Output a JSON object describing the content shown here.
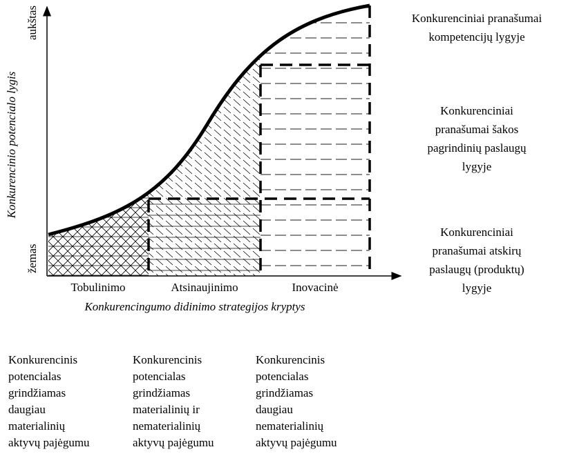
{
  "y_axis": {
    "label": "Konkurencinio potencialo lygis",
    "high": "aukštas",
    "low": "žemas"
  },
  "x_axis": {
    "label": "Konkurencingumo didinimo strategijos kryptys",
    "categories": [
      "Tobulinimo",
      "Atsinaujinimo",
      "Inovacinė"
    ]
  },
  "levels": [
    {
      "lines": [
        "Konkurenciniai pranašumai",
        "kompetencijų lygyje"
      ]
    },
    {
      "lines": [
        "Konkurenciniai",
        "pranašumai šakos",
        "pagrindinių paslaugų",
        "lygyje"
      ]
    },
    {
      "lines": [
        "Konkurenciniai",
        "pranašumai atskirų",
        "paslaugų (produktų)",
        "lygyje"
      ]
    }
  ],
  "columns": [
    {
      "lines": [
        "Konkurencinis",
        "potencialas",
        "grindžiamas",
        "daugiau",
        "materialinių",
        "aktyvų pajėgumu"
      ]
    },
    {
      "lines": [
        "Konkurencinis",
        "potencialas",
        "grindžiamas",
        "materialinių ir",
        "nematerialinių",
        "aktyvų pajėgumu"
      ]
    },
    {
      "lines": [
        "Konkurencinis",
        "potencialas",
        "grindžiamas",
        "daugiau",
        "nematerialinių",
        "aktyvų pajėgumu"
      ]
    }
  ]
}
